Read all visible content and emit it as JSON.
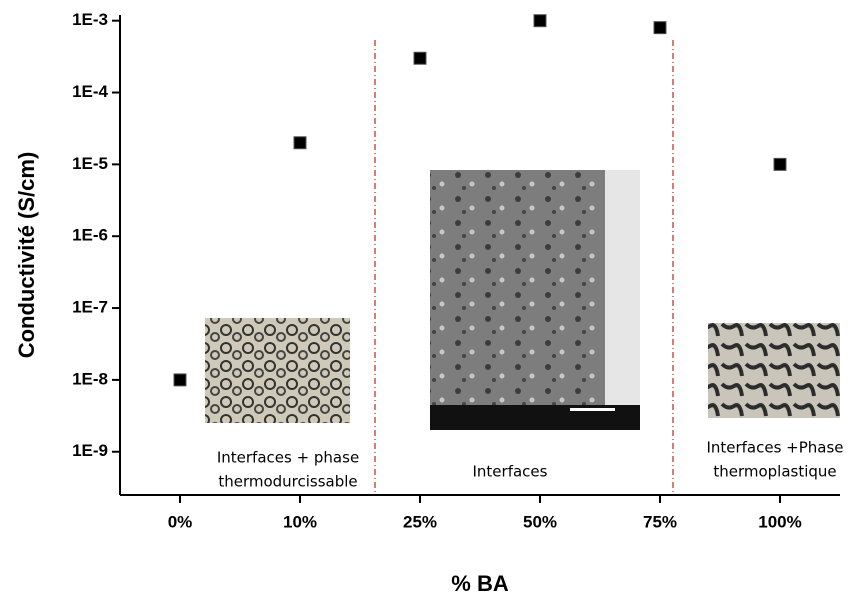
{
  "chart_data": {
    "type": "scatter",
    "x_label": "% BA",
    "y_label": "Conductivité (S/cm)",
    "categories": [
      "0%",
      "10%",
      "25%",
      "50%",
      "75%",
      "100%"
    ],
    "values": [
      1e-08,
      2e-05,
      0.0003,
      0.001,
      0.0008,
      1e-05
    ],
    "color": "#000000",
    "log_y": true,
    "ylim": [
      2.5e-10,
      0.0012
    ],
    "yticks": [
      {
        "value": 0.001,
        "label": "1E-3"
      },
      {
        "value": 0.0001,
        "label": "1E-4"
      },
      {
        "value": 1e-05,
        "label": "1E-5"
      },
      {
        "value": 1e-06,
        "label": "1E-6"
      },
      {
        "value": 1e-07,
        "label": "1E-7"
      },
      {
        "value": 1e-08,
        "label": "1E-8"
      },
      {
        "value": 1e-09,
        "label": "1E-9"
      }
    ],
    "annotations": [
      [
        "Interfaces + phase",
        "thermodurcissable"
      ],
      [
        "Interfaces"
      ],
      [
        "Interfaces +Phase",
        "thermoplastique"
      ]
    ]
  }
}
